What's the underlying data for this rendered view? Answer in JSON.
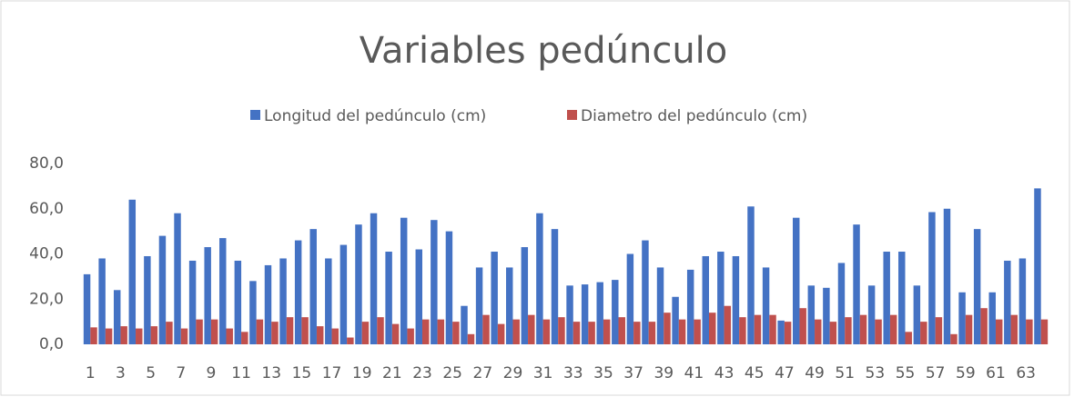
{
  "chart_data": {
    "type": "bar",
    "title": "Variables pedúnculo",
    "categories": [
      "1",
      null,
      "3",
      null,
      "5",
      null,
      "7",
      null,
      "9",
      null,
      "11",
      null,
      "13",
      null,
      "15",
      null,
      "17",
      null,
      "19",
      null,
      "21",
      null,
      "23",
      null,
      "25",
      null,
      "27",
      null,
      "29",
      null,
      "31",
      null,
      "33",
      null,
      "35",
      null,
      "37",
      null,
      "39",
      null,
      "41",
      null,
      "43",
      null,
      "45",
      null,
      "47",
      null,
      "49",
      null,
      "51",
      null,
      "53",
      null,
      "55",
      null,
      "57",
      null,
      "59",
      null,
      "61",
      null,
      "63",
      null
    ],
    "series": [
      {
        "name": "Longitud del pedúnculo (cm)",
        "color": "#4472c4",
        "values": [
          31,
          38,
          24,
          64,
          39,
          48,
          58,
          37,
          43,
          47,
          37,
          28,
          35,
          38,
          46,
          51,
          38,
          44,
          53,
          58,
          41,
          56,
          42,
          55,
          50,
          17,
          34,
          41,
          34,
          43,
          58,
          51,
          26,
          26.5,
          27.5,
          28.5,
          40,
          46,
          34,
          21,
          33,
          39,
          41,
          39,
          61,
          34,
          10.5,
          56,
          26,
          25,
          36,
          53,
          26,
          41,
          41,
          26,
          58.5,
          60,
          23,
          51,
          23,
          37,
          38,
          69
        ]
      },
      {
        "name": "Diametro del pedúnculo (cm)",
        "color": "#c0504d",
        "values": [
          7.5,
          7,
          8,
          7,
          8,
          10,
          7,
          11,
          11,
          7,
          5.5,
          11,
          10,
          12,
          12,
          8,
          7,
          3,
          10,
          12,
          9,
          7,
          11,
          11,
          10,
          4.5,
          13,
          9,
          11,
          13,
          11,
          12,
          10,
          10,
          11,
          12,
          10,
          10,
          14,
          11,
          11,
          14,
          17,
          12,
          13,
          13,
          10,
          16,
          11,
          10,
          12,
          13,
          11,
          13,
          5.5,
          10,
          12,
          4.5,
          13,
          16,
          11,
          13,
          11,
          11
        ]
      }
    ],
    "ylim": [
      0,
      80
    ],
    "yticks": [
      {
        "value": 0,
        "label": "0,0"
      },
      {
        "value": 20,
        "label": "20,0"
      },
      {
        "value": 40,
        "label": "40,0"
      },
      {
        "value": 60,
        "label": "60,0"
      },
      {
        "value": 80,
        "label": "80,0"
      }
    ],
    "grid": false,
    "legend": "top"
  }
}
